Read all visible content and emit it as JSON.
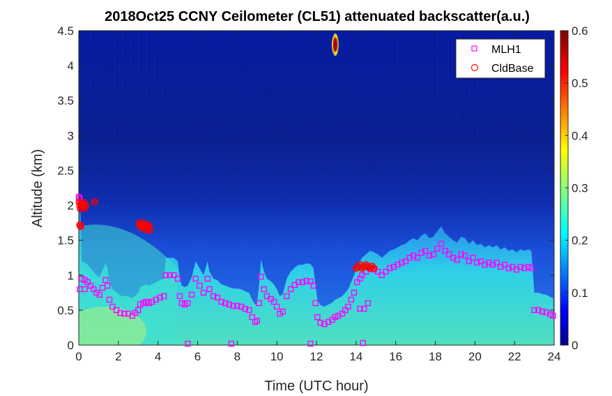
{
  "chart_data": {
    "type": "heatmap",
    "title": "2018Oct25 CCNY Ceilometer (CL51) attenuated backscatter(a.u.)",
    "xlabel": "Time (UTC hour)",
    "ylabel": "Altitude (km)",
    "xlim": [
      0,
      24
    ],
    "ylim": [
      0,
      4.5
    ],
    "x_ticks": [
      "0",
      "2",
      "4",
      "6",
      "8",
      "10",
      "12",
      "14",
      "16",
      "18",
      "20",
      "22",
      "24"
    ],
    "y_ticks": [
      "0",
      "0.5",
      "1",
      "1.5",
      "2",
      "2.5",
      "3",
      "3.5",
      "4",
      "4.5"
    ],
    "colorbar": {
      "range": [
        0,
        0.6
      ],
      "ticks": [
        "0",
        "0.1",
        "0.2",
        "0.3",
        "0.4",
        "0.5",
        "0.6"
      ],
      "colormap": "jet"
    },
    "legend": {
      "position": "top-right"
    },
    "series": [
      {
        "name": "MLH1",
        "marker": "square",
        "color": "#ff00ff",
        "points": [
          [
            0.0,
            2.12
          ],
          [
            0.05,
            2.1
          ],
          [
            0.1,
            1.7
          ],
          [
            0.15,
            0.95
          ],
          [
            0.3,
            0.93
          ],
          [
            0.45,
            0.9
          ],
          [
            0.6,
            0.85
          ],
          [
            0.75,
            0.8
          ],
          [
            0.9,
            0.75
          ],
          [
            1.05,
            0.72
          ],
          [
            1.2,
            0.82
          ],
          [
            1.35,
            0.93
          ],
          [
            1.45,
            0.85
          ],
          [
            1.55,
            0.65
          ],
          [
            1.7,
            0.55
          ],
          [
            1.9,
            0.5
          ],
          [
            2.1,
            0.46
          ],
          [
            2.3,
            0.45
          ],
          [
            2.5,
            0.45
          ],
          [
            2.7,
            0.42
          ],
          [
            2.85,
            0.46
          ],
          [
            3.0,
            0.5
          ],
          [
            3.1,
            0.58
          ],
          [
            3.25,
            0.6
          ],
          [
            3.4,
            0.62
          ],
          [
            3.55,
            0.6
          ],
          [
            3.7,
            0.62
          ],
          [
            3.9,
            0.65
          ],
          [
            4.1,
            0.68
          ],
          [
            4.3,
            0.7
          ],
          [
            4.4,
            1.0
          ],
          [
            4.6,
            1.0
          ],
          [
            4.8,
            1.0
          ],
          [
            5.0,
            0.95
          ],
          [
            5.1,
            0.7
          ],
          [
            5.2,
            0.6
          ],
          [
            5.35,
            0.58
          ],
          [
            5.5,
            0.6
          ],
          [
            5.7,
            0.72
          ],
          [
            5.9,
            0.95
          ],
          [
            6.1,
            0.85
          ],
          [
            6.3,
            0.75
          ],
          [
            6.5,
            0.95
          ],
          [
            6.6,
            0.8
          ],
          [
            6.8,
            0.7
          ],
          [
            7.0,
            0.68
          ],
          [
            7.2,
            0.62
          ],
          [
            7.4,
            0.6
          ],
          [
            7.6,
            0.58
          ],
          [
            7.8,
            0.56
          ],
          [
            8.0,
            0.56
          ],
          [
            8.2,
            0.55
          ],
          [
            8.4,
            0.52
          ],
          [
            8.6,
            0.5
          ],
          [
            8.75,
            0.4
          ],
          [
            8.9,
            0.33
          ],
          [
            9.0,
            0.35
          ],
          [
            9.1,
            0.6
          ],
          [
            9.2,
            0.98
          ],
          [
            9.35,
            0.8
          ],
          [
            9.5,
            0.7
          ],
          [
            9.7,
            0.66
          ],
          [
            9.85,
            0.62
          ],
          [
            10.0,
            0.55
          ],
          [
            10.15,
            0.45
          ],
          [
            10.3,
            0.48
          ],
          [
            10.5,
            0.7
          ],
          [
            10.7,
            0.8
          ],
          [
            10.9,
            0.86
          ],
          [
            11.1,
            0.9
          ],
          [
            11.3,
            0.9
          ],
          [
            11.5,
            0.92
          ],
          [
            11.7,
            0.91
          ],
          [
            11.85,
            0.85
          ],
          [
            11.95,
            0.6
          ],
          [
            12.05,
            0.4
          ],
          [
            12.2,
            0.32
          ],
          [
            12.4,
            0.3
          ],
          [
            12.6,
            0.33
          ],
          [
            12.8,
            0.36
          ],
          [
            12.95,
            0.4
          ],
          [
            13.1,
            0.42
          ],
          [
            13.3,
            0.45
          ],
          [
            13.45,
            0.5
          ],
          [
            13.6,
            0.55
          ],
          [
            13.75,
            0.65
          ],
          [
            13.9,
            0.75
          ],
          [
            14.05,
            0.9
          ],
          [
            14.2,
            0.95
          ],
          [
            14.3,
            1.0
          ],
          [
            14.5,
            1.05
          ],
          [
            14.7,
            1.1
          ],
          [
            14.9,
            1.08
          ],
          [
            15.1,
            1.05
          ],
          [
            15.3,
            1.0
          ],
          [
            15.5,
            1.05
          ],
          [
            15.7,
            1.1
          ],
          [
            15.9,
            1.12
          ],
          [
            16.1,
            1.15
          ],
          [
            16.3,
            1.18
          ],
          [
            16.5,
            1.2
          ],
          [
            16.7,
            1.25
          ],
          [
            16.9,
            1.28
          ],
          [
            17.1,
            1.25
          ],
          [
            17.3,
            1.32
          ],
          [
            17.5,
            1.35
          ],
          [
            17.7,
            1.28
          ],
          [
            17.9,
            1.3
          ],
          [
            18.1,
            1.38
          ],
          [
            18.3,
            1.45
          ],
          [
            18.5,
            1.35
          ],
          [
            18.7,
            1.3
          ],
          [
            18.9,
            1.25
          ],
          [
            19.1,
            1.22
          ],
          [
            19.3,
            1.3
          ],
          [
            19.5,
            1.28
          ],
          [
            19.7,
            1.2
          ],
          [
            19.9,
            1.25
          ],
          [
            20.1,
            1.18
          ],
          [
            20.3,
            1.2
          ],
          [
            20.5,
            1.15
          ],
          [
            20.7,
            1.18
          ],
          [
            20.9,
            1.15
          ],
          [
            21.1,
            1.18
          ],
          [
            21.3,
            1.12
          ],
          [
            21.5,
            1.15
          ],
          [
            21.7,
            1.1
          ],
          [
            21.9,
            1.12
          ],
          [
            22.1,
            1.08
          ],
          [
            22.3,
            1.12
          ],
          [
            22.5,
            1.1
          ],
          [
            22.7,
            1.12
          ],
          [
            22.85,
            1.1
          ],
          [
            23.0,
            0.5
          ],
          [
            23.2,
            0.5
          ],
          [
            23.4,
            0.48
          ],
          [
            23.6,
            0.47
          ],
          [
            23.8,
            0.44
          ],
          [
            23.95,
            0.42
          ],
          [
            0.05,
            0.8
          ],
          [
            0.3,
            0.8
          ],
          [
            5.5,
            0.02
          ],
          [
            7.7,
            0.02
          ],
          [
            11.7,
            0.02
          ],
          [
            14.2,
            0.52
          ],
          [
            14.4,
            0.52
          ],
          [
            14.6,
            0.6
          ],
          [
            14.35,
            0.03
          ]
        ]
      },
      {
        "name": "CldBase",
        "marker": "circle",
        "color": "#ff0000",
        "points": [
          [
            0.02,
            2.05
          ],
          [
            0.05,
            2.0
          ],
          [
            0.08,
            1.95
          ],
          [
            0.12,
            2.02
          ],
          [
            0.15,
            1.98
          ],
          [
            0.2,
            2.0
          ],
          [
            0.25,
            2.04
          ],
          [
            0.3,
            1.96
          ],
          [
            0.35,
            2.0
          ],
          [
            0.8,
            2.05
          ],
          [
            0.05,
            1.72
          ],
          [
            0.1,
            1.7
          ],
          [
            3.05,
            1.75
          ],
          [
            3.1,
            1.7
          ],
          [
            3.15,
            1.72
          ],
          [
            3.2,
            1.68
          ],
          [
            3.25,
            1.75
          ],
          [
            3.3,
            1.7
          ],
          [
            3.4,
            1.65
          ],
          [
            3.45,
            1.68
          ],
          [
            3.55,
            1.7
          ],
          [
            3.6,
            1.65
          ],
          [
            3.5,
            1.72
          ],
          [
            14.0,
            1.1
          ],
          [
            14.1,
            1.12
          ],
          [
            14.2,
            1.15
          ],
          [
            14.3,
            1.1
          ],
          [
            14.4,
            1.12
          ],
          [
            14.5,
            1.15
          ],
          [
            14.6,
            1.12
          ],
          [
            14.7,
            1.1
          ],
          [
            14.8,
            1.13
          ],
          [
            14.9,
            1.1
          ]
        ]
      }
    ],
    "features": [
      {
        "label": "aerosol_layer",
        "description_values": {
          "x_from": 0,
          "x_to": 5,
          "y_top": 1.7
        }
      }
    ]
  }
}
